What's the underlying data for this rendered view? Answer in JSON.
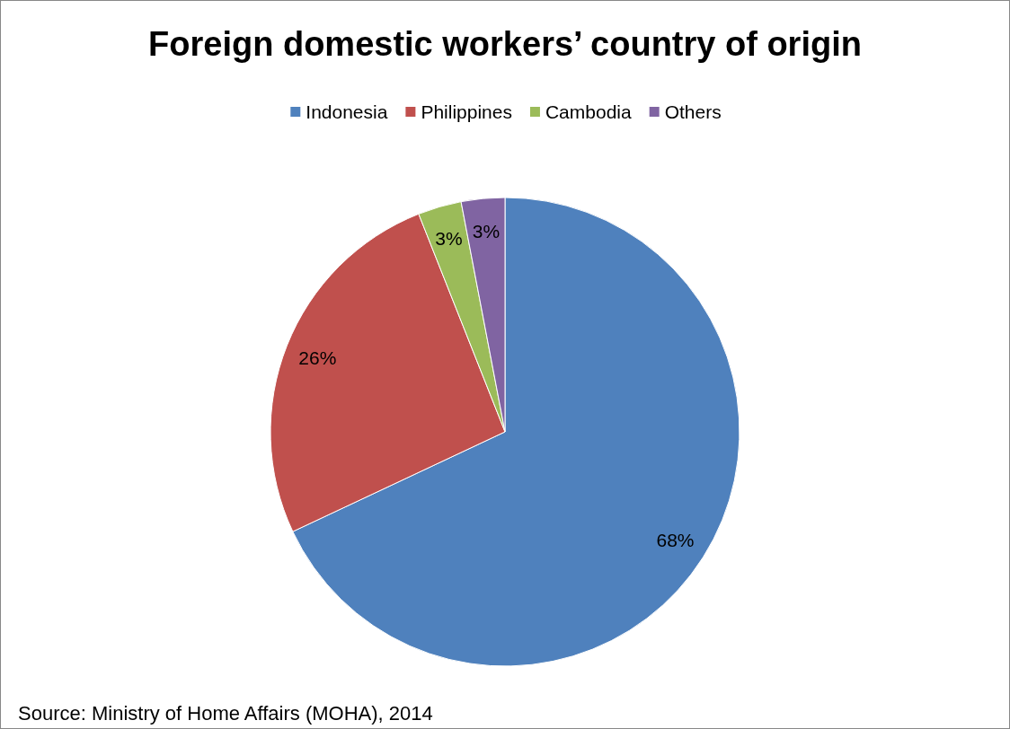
{
  "chart_data": {
    "type": "pie",
    "title": "Foreign domestic workers’ country of origin",
    "categories": [
      "Indonesia",
      "Philippines",
      "Cambodia",
      "Others"
    ],
    "values": [
      68,
      26,
      3,
      3
    ],
    "colors": [
      "#4f81bd",
      "#c0504d",
      "#9bbb59",
      "#8064a2"
    ],
    "value_labels": [
      "68%",
      "26%",
      "3%",
      "3%"
    ],
    "legend": "top",
    "annotations": [
      "Source: Ministry of Home Affairs (MOHA), 2014"
    ]
  }
}
